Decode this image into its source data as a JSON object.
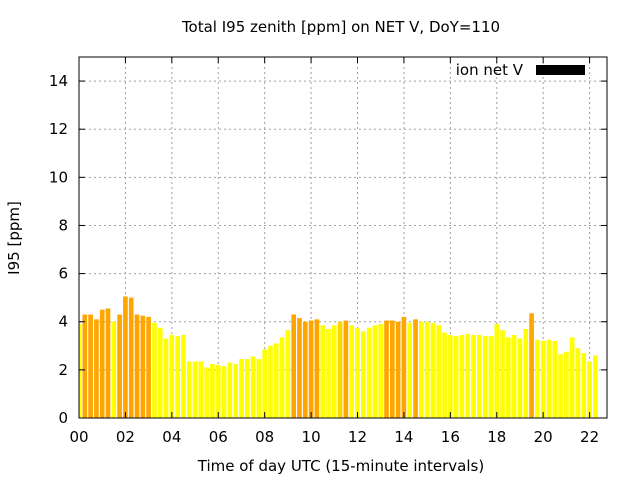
{
  "chart_data": {
    "type": "bar",
    "title": "Total I95 zenith [ppm] on NET V, DoY=110",
    "xlabel": "Time of day UTC (15-minute intervals)",
    "ylabel": "I95 [ppm]",
    "legend": {
      "label": "ion net V",
      "color": "#000000",
      "placement": "top-right"
    },
    "grid": true,
    "interval_minutes": 15,
    "xlim": [
      0,
      22.75
    ],
    "ylim": [
      0,
      15
    ],
    "xticks": [
      "00",
      "02",
      "04",
      "06",
      "08",
      "10",
      "12",
      "14",
      "16",
      "18",
      "20",
      "22"
    ],
    "yticks": [
      "0",
      "2",
      "4",
      "6",
      "8",
      "10",
      "12",
      "14"
    ],
    "colors": {
      "low": "#ffff00",
      "mid": "#ffd700",
      "high": "#ffa500"
    },
    "values": [
      3.9,
      4.3,
      4.3,
      4.1,
      4.5,
      4.55,
      4.0,
      4.3,
      5.05,
      5.0,
      4.3,
      4.25,
      4.2,
      3.95,
      3.75,
      3.3,
      3.45,
      3.4,
      3.45,
      2.35,
      2.35,
      2.35,
      2.1,
      2.25,
      2.2,
      2.15,
      2.3,
      2.25,
      2.45,
      2.45,
      2.55,
      2.45,
      2.85,
      3.0,
      3.1,
      3.35,
      3.65,
      4.3,
      4.15,
      4.0,
      4.05,
      4.1,
      3.85,
      3.7,
      3.85,
      4.0,
      4.05,
      3.85,
      3.75,
      3.6,
      3.75,
      3.85,
      3.9,
      4.05,
      4.05,
      4.0,
      4.2,
      3.95,
      4.1,
      4.0,
      4.0,
      3.95,
      3.85,
      3.55,
      3.45,
      3.4,
      3.45,
      3.5,
      3.45,
      3.45,
      3.4,
      3.4,
      3.9,
      3.65,
      3.35,
      3.45,
      3.3,
      3.7,
      4.35,
      3.25,
      3.2,
      3.25,
      3.2,
      2.65,
      2.75,
      3.35,
      2.9,
      2.7,
      2.35,
      2.6
    ],
    "levels": [
      "low",
      "high",
      "high",
      "high",
      "high",
      "high",
      "low",
      "high",
      "high",
      "high",
      "high",
      "high",
      "high",
      "low",
      "low",
      "low",
      "low",
      "low",
      "low",
      "low",
      "low",
      "low",
      "low",
      "low",
      "low",
      "low",
      "low",
      "low",
      "low",
      "low",
      "low",
      "low",
      "low",
      "low",
      "low",
      "low",
      "low",
      "high",
      "high",
      "high",
      "high",
      "high",
      "low",
      "low",
      "low",
      "mid",
      "high",
      "low",
      "low",
      "low",
      "low",
      "low",
      "low",
      "high",
      "high",
      "high",
      "high",
      "low",
      "high",
      "low",
      "low",
      "low",
      "low",
      "low",
      "low",
      "low",
      "low",
      "low",
      "low",
      "low",
      "low",
      "low",
      "low",
      "low",
      "low",
      "low",
      "low",
      "low",
      "high",
      "low",
      "low",
      "low",
      "low",
      "low",
      "low",
      "low",
      "low",
      "low",
      "low",
      "low"
    ]
  }
}
